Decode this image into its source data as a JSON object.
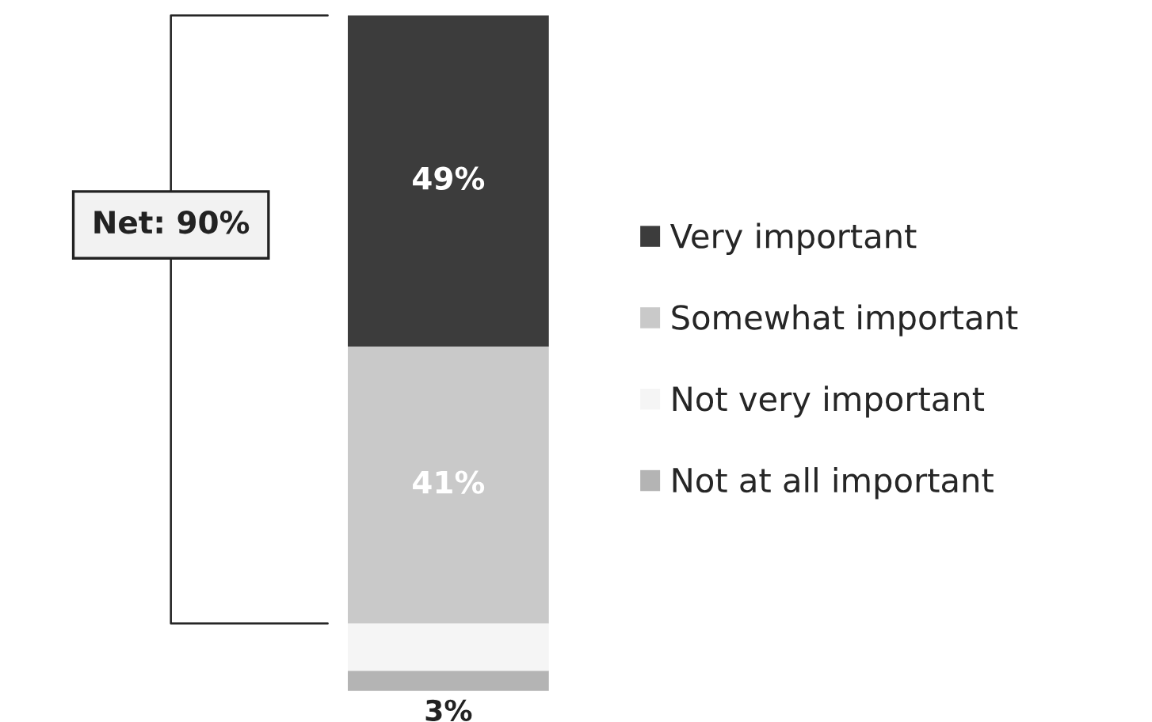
{
  "chart_data": {
    "type": "bar",
    "stacked": true,
    "categories": [
      null
    ],
    "series": [
      {
        "name": "Not at all important",
        "color": "#b4b4b4",
        "values": [
          3
        ],
        "value_labels": [
          "3%"
        ]
      },
      {
        "name": "Not very important",
        "color": "#f5f5f5",
        "values": [
          7
        ],
        "value_labels": [
          null
        ]
      },
      {
        "name": "Somewhat important",
        "color": "#c9c9c9",
        "values": [
          41
        ],
        "value_labels": [
          "41%"
        ]
      },
      {
        "name": "Very important",
        "color": "#3c3c3c",
        "values": [
          49
        ],
        "value_labels": [
          "49%"
        ]
      }
    ],
    "annotations": [
      "Net: 90%"
    ],
    "legend": "right"
  }
}
